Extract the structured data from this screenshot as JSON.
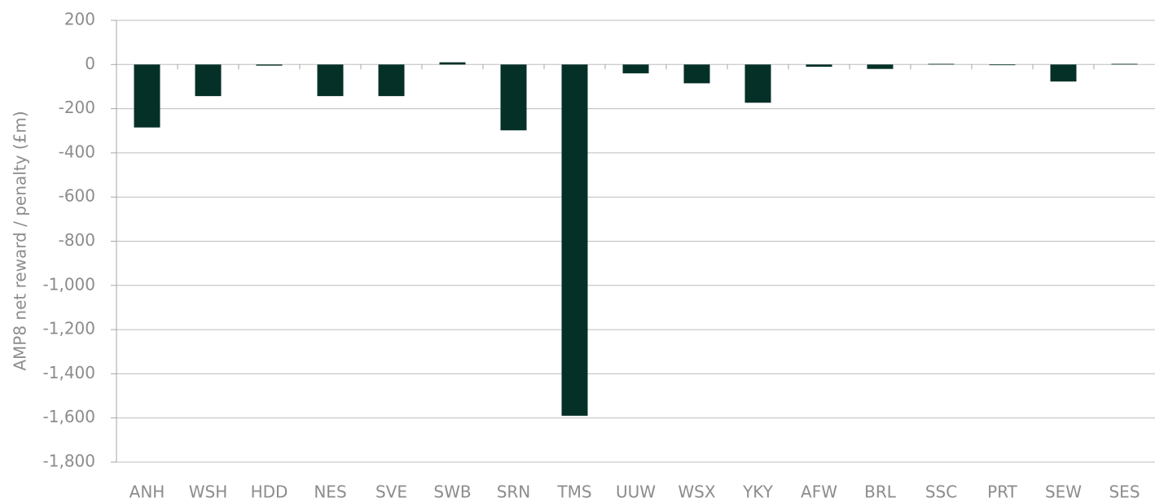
{
  "chart_data": {
    "type": "bar",
    "y_label": "AMP8 net reward / penalty (£m)",
    "categories": [
      "ANH",
      "WSH",
      "HDD",
      "NES",
      "SVE",
      "SWB",
      "SRN",
      "TMS",
      "UUW",
      "WSX",
      "YKY",
      "AFW",
      "BRL",
      "SSC",
      "PRT",
      "SEW",
      "SES"
    ],
    "values": [
      -285,
      -143,
      -5,
      -143,
      -143,
      10,
      -298,
      -1590,
      -40,
      -85,
      -173,
      -10,
      -20,
      3,
      -3,
      -77,
      3
    ],
    "color": "#053028",
    "ylim": [
      -1800,
      200
    ],
    "yticks": [
      200,
      0,
      -200,
      -400,
      -600,
      -800,
      {
        "value": -1000,
        "label": "-1,000"
      },
      {
        "value": -1200,
        "label": "-1,200"
      },
      {
        "value": -1400,
        "label": "-1,400"
      },
      {
        "value": -1600,
        "label": "-1,600"
      },
      {
        "value": -1800,
        "label": "-1,800"
      }
    ],
    "grid": true
  }
}
